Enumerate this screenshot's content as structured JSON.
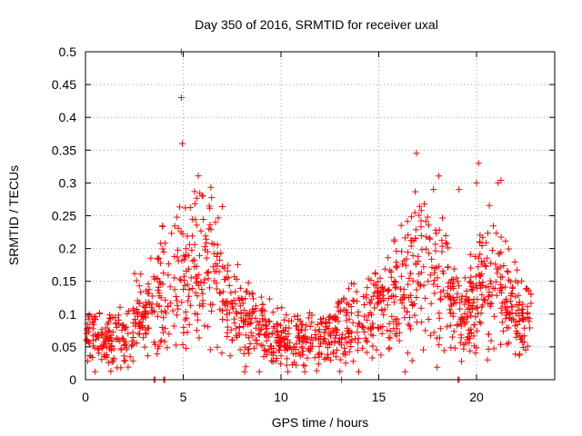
{
  "chart_data": {
    "type": "scatter",
    "title": "Day 350 of 2016, SRMTID for receiver uxal",
    "xlabel": "GPS time / hours",
    "ylabel": "SRMTID / TECUs",
    "xlim": [
      0,
      24
    ],
    "ylim": [
      0,
      0.5
    ],
    "x_ticks": [
      0,
      5,
      10,
      15,
      20
    ],
    "x_tick_labels": [
      "0",
      "5",
      "10",
      "15",
      "20"
    ],
    "y_ticks": [
      0,
      0.05,
      0.1,
      0.15,
      0.2,
      0.25,
      0.3,
      0.35,
      0.4,
      0.45,
      0.5
    ],
    "y_tick_labels": [
      "0",
      "0.05",
      "0.1",
      "0.15",
      "0.2",
      "0.25",
      "0.3",
      "0.35",
      "0.4",
      "0.45",
      "0.5"
    ],
    "grid": true,
    "marker": "plus",
    "color": "#ff0000",
    "series": [
      {
        "name": "SRMTID",
        "trend": [
          [
            0.0,
            0.065
          ],
          [
            0.5,
            0.07
          ],
          [
            1.0,
            0.05
          ],
          [
            1.5,
            0.07
          ],
          [
            2.0,
            0.06
          ],
          [
            2.5,
            0.075
          ],
          [
            3.0,
            0.09
          ],
          [
            3.5,
            0.12
          ],
          [
            4.0,
            0.14
          ],
          [
            4.5,
            0.13
          ],
          [
            5.0,
            0.16
          ],
          [
            5.5,
            0.17
          ],
          [
            6.0,
            0.19
          ],
          [
            6.5,
            0.17
          ],
          [
            7.0,
            0.14
          ],
          [
            7.5,
            0.1
          ],
          [
            8.0,
            0.09
          ],
          [
            8.5,
            0.09
          ],
          [
            9.0,
            0.08
          ],
          [
            9.5,
            0.065
          ],
          [
            10.0,
            0.06
          ],
          [
            10.5,
            0.06
          ],
          [
            11.0,
            0.06
          ],
          [
            11.5,
            0.06
          ],
          [
            12.0,
            0.065
          ],
          [
            12.5,
            0.065
          ],
          [
            13.0,
            0.08
          ],
          [
            13.5,
            0.08
          ],
          [
            14.0,
            0.09
          ],
          [
            14.5,
            0.1
          ],
          [
            15.0,
            0.11
          ],
          [
            15.5,
            0.12
          ],
          [
            16.0,
            0.13
          ],
          [
            16.5,
            0.15
          ],
          [
            17.0,
            0.17
          ],
          [
            17.5,
            0.17
          ],
          [
            18.0,
            0.19
          ],
          [
            18.5,
            0.13
          ],
          [
            19.0,
            0.1
          ],
          [
            19.5,
            0.09
          ],
          [
            20.0,
            0.12
          ],
          [
            20.5,
            0.15
          ],
          [
            21.0,
            0.16
          ],
          [
            21.5,
            0.12
          ],
          [
            22.0,
            0.1
          ],
          [
            22.5,
            0.09
          ],
          [
            22.8,
            0.1
          ]
        ],
        "point_count": 1400,
        "peaks": [
          [
            4.9,
            0.5
          ],
          [
            4.9,
            0.43
          ],
          [
            4.95,
            0.36
          ],
          [
            20.1,
            0.33
          ],
          [
            20.0,
            0.3
          ],
          [
            17.8,
            0.29
          ],
          [
            21.1,
            0.3
          ],
          [
            19.1,
            0.29
          ],
          [
            6.0,
            0.28
          ]
        ],
        "zero_points": [
          3.5,
          3.55,
          4.0,
          4.05,
          13.1,
          19.05,
          19.1
        ]
      }
    ]
  }
}
